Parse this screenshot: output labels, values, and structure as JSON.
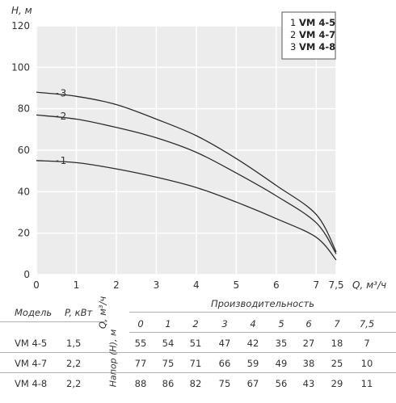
{
  "chart_data": {
    "type": "line",
    "ylabel": "H, м",
    "xlabel": "Q, м³/ч",
    "x_ticks": [
      "0",
      "1",
      "2",
      "3",
      "4",
      "5",
      "6",
      "7",
      "7,5"
    ],
    "y_ticks": [
      "0",
      "20",
      "40",
      "60",
      "80",
      "100",
      "120"
    ],
    "xlim": [
      0,
      7.5
    ],
    "ylim": [
      0,
      120
    ],
    "grid": true,
    "legend_position": "top-right",
    "legend": [
      {
        "num": "1",
        "model": "VM 4-5"
      },
      {
        "num": "2",
        "model": "VM 4-7"
      },
      {
        "num": "3",
        "model": "VM 4-8"
      }
    ],
    "x": [
      0,
      1,
      2,
      3,
      4,
      5,
      6,
      7,
      7.5
    ],
    "series": [
      {
        "name": "1",
        "values": [
          55,
          54,
          51,
          47,
          42,
          35,
          27,
          18,
          7
        ]
      },
      {
        "name": "2",
        "values": [
          77,
          75,
          71,
          66,
          59,
          49,
          38,
          25,
          10
        ]
      },
      {
        "name": "3",
        "values": [
          88,
          86,
          82,
          75,
          67,
          56,
          43,
          29,
          11
        ]
      }
    ]
  },
  "table": {
    "col_model": "Модель",
    "col_power": "P, кВт",
    "col_q": "Q, м³/ч",
    "col_head": "Напор (H), м",
    "group_header": "Производительность",
    "q_values": [
      "0",
      "1",
      "2",
      "3",
      "4",
      "5",
      "6",
      "7",
      "7,5"
    ],
    "rows": [
      {
        "model": "VM 4-5",
        "power": "1,5",
        "heads": [
          "55",
          "54",
          "51",
          "47",
          "42",
          "35",
          "27",
          "18",
          "7"
        ]
      },
      {
        "model": "VM 4-7",
        "power": "2,2",
        "heads": [
          "77",
          "75",
          "71",
          "66",
          "59",
          "49",
          "38",
          "25",
          "10"
        ]
      },
      {
        "model": "VM 4-8",
        "power": "2,2",
        "heads": [
          "88",
          "86",
          "82",
          "75",
          "67",
          "56",
          "43",
          "29",
          "11"
        ]
      }
    ]
  }
}
